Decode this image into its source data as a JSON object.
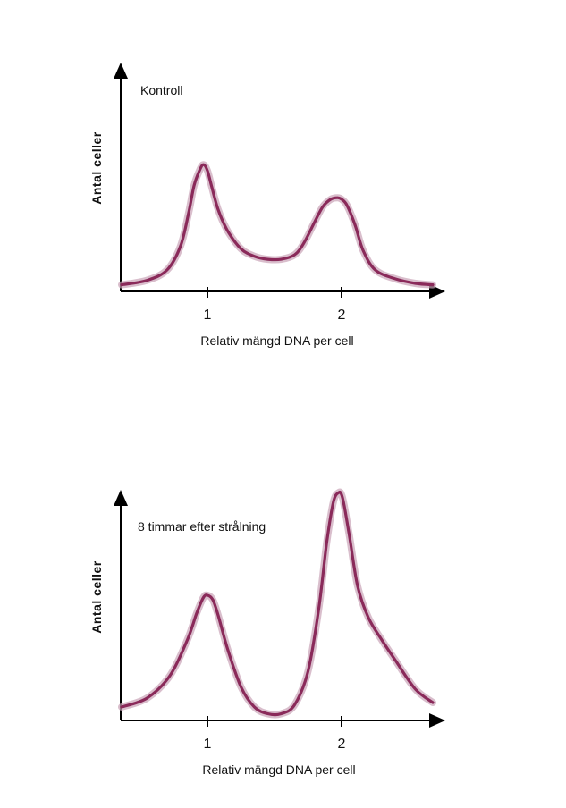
{
  "chart_data": [
    {
      "type": "line",
      "title": "Kontroll",
      "xlabel": "Relativ mängd DNA per cell",
      "ylabel": "Antal celler",
      "x_ticks": [
        "1",
        "2"
      ],
      "xlim": [
        0.36,
        2.68
      ],
      "ylim": [
        0,
        1.0
      ],
      "series": [
        {
          "x": [
            0.36,
            0.55,
            0.7,
            0.8,
            0.86,
            0.9,
            0.94,
            0.97,
            1.0,
            1.03,
            1.08,
            1.15,
            1.25,
            1.35,
            1.45,
            1.55,
            1.65,
            1.72,
            1.8,
            1.86,
            1.92,
            1.97,
            2.0,
            2.04,
            2.1,
            2.16,
            2.25,
            2.4,
            2.55,
            2.68
          ],
          "y": [
            0.02,
            0.05,
            0.12,
            0.28,
            0.5,
            0.68,
            0.78,
            0.82,
            0.78,
            0.68,
            0.52,
            0.38,
            0.26,
            0.21,
            0.19,
            0.19,
            0.22,
            0.3,
            0.44,
            0.54,
            0.59,
            0.6,
            0.59,
            0.55,
            0.42,
            0.25,
            0.12,
            0.06,
            0.03,
            0.02
          ]
        }
      ]
    },
    {
      "type": "line",
      "title": "8 timmar efter strålning",
      "xlabel": "Relativ mängd DNA per cell",
      "ylabel": "Antal celler",
      "x_ticks": [
        "1",
        "2"
      ],
      "xlim": [
        0.36,
        2.68
      ],
      "ylim": [
        0,
        1.0
      ],
      "series": [
        {
          "x": [
            0.36,
            0.55,
            0.72,
            0.85,
            0.92,
            0.97,
            1.0,
            1.04,
            1.08,
            1.15,
            1.25,
            1.35,
            1.45,
            1.55,
            1.65,
            1.75,
            1.83,
            1.89,
            1.94,
            1.98,
            2.0,
            2.02,
            2.06,
            2.12,
            2.2,
            2.3,
            2.4,
            2.55,
            2.68
          ],
          "y": [
            0.04,
            0.08,
            0.18,
            0.34,
            0.46,
            0.53,
            0.54,
            0.52,
            0.45,
            0.3,
            0.13,
            0.04,
            0.01,
            0.01,
            0.05,
            0.2,
            0.48,
            0.78,
            0.96,
            1.0,
            0.99,
            0.94,
            0.8,
            0.58,
            0.44,
            0.34,
            0.25,
            0.12,
            0.06
          ]
        }
      ]
    }
  ]
}
